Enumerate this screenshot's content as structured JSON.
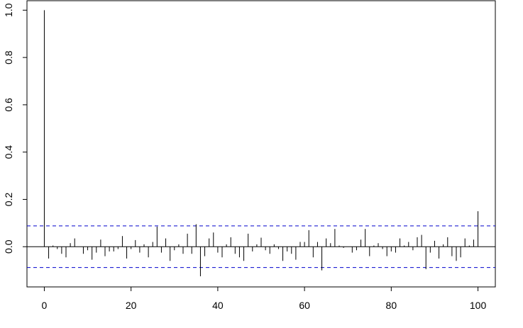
{
  "chart_data": {
    "type": "bar",
    "title": "",
    "xlabel": "",
    "ylabel": "",
    "xlim": [
      -4,
      104
    ],
    "ylim": [
      -0.17,
      1.04
    ],
    "x_ticks": [
      0,
      20,
      40,
      60,
      80,
      100
    ],
    "y_ticks": [
      0.0,
      0.2,
      0.4,
      0.6,
      0.8,
      1.0
    ],
    "x_tick_labels": [
      "0",
      "20",
      "40",
      "60",
      "80",
      "100"
    ],
    "y_tick_labels": [
      "0.0",
      "0.2",
      "0.4",
      "0.6",
      "0.8",
      "1.0"
    ],
    "confidence_bound": 0.088,
    "grid": false,
    "bar_color": "#000000",
    "bound_color": "#0000CD",
    "lags": [
      0,
      1,
      2,
      3,
      4,
      5,
      6,
      7,
      8,
      9,
      10,
      11,
      12,
      13,
      14,
      15,
      16,
      17,
      18,
      19,
      20,
      21,
      22,
      23,
      24,
      25,
      26,
      27,
      28,
      29,
      30,
      31,
      32,
      33,
      34,
      35,
      36,
      37,
      38,
      39,
      40,
      41,
      42,
      43,
      44,
      45,
      46,
      47,
      48,
      49,
      50,
      51,
      52,
      53,
      54,
      55,
      56,
      57,
      58,
      59,
      60,
      61,
      62,
      63,
      64,
      65,
      66,
      67,
      68,
      69,
      70,
      71,
      72,
      73,
      74,
      75,
      76,
      77,
      78,
      79,
      80,
      81,
      82,
      83,
      84,
      85,
      86,
      87,
      88,
      89,
      90,
      91,
      92,
      93,
      94,
      95,
      96,
      97,
      98,
      99,
      100
    ],
    "values": [
      1.0,
      -0.05,
      0.005,
      -0.01,
      -0.03,
      -0.045,
      0.015,
      0.035,
      0.0,
      -0.03,
      -0.015,
      -0.055,
      -0.025,
      0.03,
      -0.04,
      -0.02,
      -0.02,
      -0.01,
      0.045,
      -0.05,
      -0.01,
      0.028,
      -0.025,
      0.01,
      -0.045,
      0.02,
      0.085,
      -0.025,
      0.035,
      -0.06,
      -0.015,
      0.01,
      -0.03,
      0.055,
      -0.03,
      0.095,
      -0.125,
      -0.04,
      0.035,
      0.06,
      -0.025,
      -0.045,
      0.01,
      0.04,
      -0.03,
      -0.045,
      -0.06,
      0.055,
      -0.02,
      0.01,
      0.038,
      -0.015,
      -0.03,
      0.01,
      -0.01,
      -0.06,
      -0.02,
      -0.03,
      -0.055,
      0.02,
      0.02,
      0.07,
      -0.045,
      0.02,
      -0.1,
      0.035,
      0.015,
      0.075,
      0.005,
      -0.005,
      0.0,
      -0.025,
      -0.015,
      0.03,
      0.075,
      -0.04,
      0.005,
      0.015,
      -0.01,
      -0.04,
      -0.02,
      -0.025,
      0.035,
      0.005,
      0.02,
      -0.015,
      0.04,
      0.05,
      -0.095,
      -0.025,
      0.025,
      -0.05,
      0.01,
      0.04,
      -0.04,
      -0.06,
      -0.045,
      0.035,
      0.005,
      0.03,
      0.15
    ]
  }
}
